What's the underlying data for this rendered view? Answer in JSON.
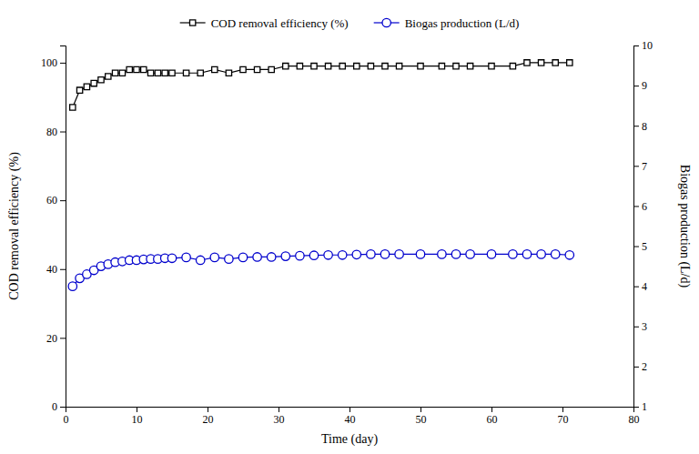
{
  "chart_data": {
    "type": "line",
    "xlabel": "Time (day)",
    "ylabel": "COD removal efficiency (%)",
    "y2label": "Biogas production (L/d)",
    "x": [
      1,
      2,
      3,
      4,
      5,
      6,
      7,
      8,
      9,
      10,
      11,
      12,
      13,
      14,
      15,
      17,
      19,
      21,
      23,
      25,
      27,
      29,
      31,
      33,
      35,
      37,
      39,
      41,
      43,
      45,
      47,
      50,
      53,
      55,
      57,
      60,
      63,
      65,
      67,
      69,
      71
    ],
    "series": [
      {
        "name": "COD removal efficiency (%)",
        "color": "#000000",
        "marker": "square",
        "values": [
          87,
          92,
          93,
          94,
          95,
          96,
          97,
          97,
          98,
          98,
          98,
          97,
          97,
          97,
          97,
          97,
          97,
          98,
          97,
          98,
          98,
          98,
          99,
          99,
          99,
          99,
          99,
          99,
          99,
          99,
          99,
          99,
          99,
          99,
          99,
          99,
          99,
          100,
          100,
          100,
          100
        ]
      },
      {
        "name": "Biogas production (L/d)",
        "color": "#0000cd",
        "marker": "circle",
        "axis": "y2",
        "values": [
          4.0,
          4.2,
          4.3,
          4.4,
          4.5,
          4.55,
          4.6,
          4.62,
          4.65,
          4.65,
          4.67,
          4.68,
          4.68,
          4.7,
          4.7,
          4.72,
          4.65,
          4.72,
          4.68,
          4.72,
          4.73,
          4.73,
          4.75,
          4.76,
          4.77,
          4.78,
          4.78,
          4.79,
          4.8,
          4.8,
          4.8,
          4.8,
          4.8,
          4.8,
          4.8,
          4.8,
          4.8,
          4.8,
          4.8,
          4.8,
          4.78
        ]
      }
    ],
    "xlim": [
      0,
      80
    ],
    "xticks": [
      0,
      10,
      20,
      30,
      40,
      50,
      60,
      70,
      80
    ],
    "ylim": [
      0,
      105
    ],
    "yticks": [
      0,
      20,
      40,
      60,
      80,
      100
    ],
    "y2lim": [
      1,
      10
    ],
    "y2ticks": [
      1,
      2,
      3,
      4,
      5,
      6,
      7,
      8,
      9,
      10
    ],
    "grid": false,
    "legend": "top"
  }
}
